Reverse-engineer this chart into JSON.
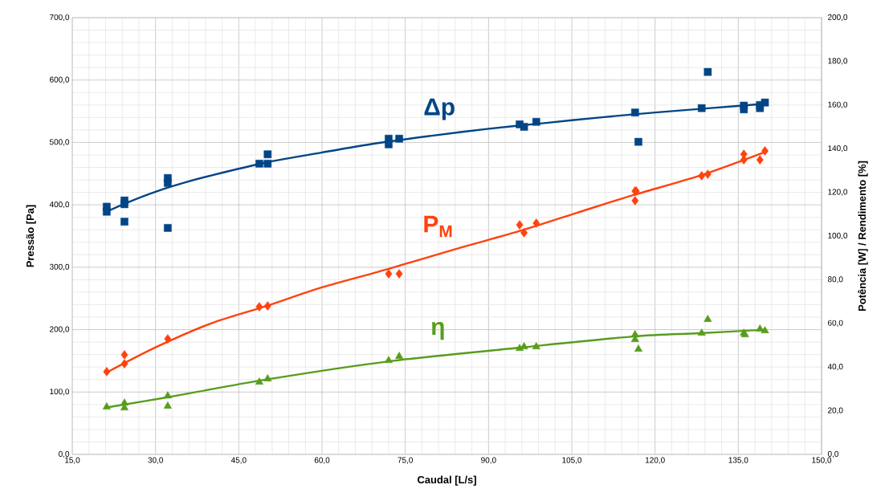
{
  "chart_data": {
    "type": "scatter",
    "xlabel": "Caudal [L/s]",
    "ylabel": "Pressão [Pa]",
    "y2label": "Potência [W] / Rendimento [%]",
    "xlim": [
      15,
      150
    ],
    "xticks": [
      {
        "value": 15,
        "label": "15,0"
      },
      {
        "value": 30,
        "label": "30,0"
      },
      {
        "value": 45,
        "label": "45,0"
      },
      {
        "value": 60,
        "label": "60,0"
      },
      {
        "value": 75,
        "label": "75,0"
      },
      {
        "value": 90,
        "label": "90,0"
      },
      {
        "value": 105,
        "label": "105,0"
      },
      {
        "value": 120,
        "label": "120,0"
      },
      {
        "value": 135,
        "label": "135,0"
      },
      {
        "value": 150,
        "label": "150,0"
      }
    ],
    "ylim": [
      0,
      700
    ],
    "yticks": [
      {
        "value": 0,
        "label": "0,0"
      },
      {
        "value": 100,
        "label": "100,0"
      },
      {
        "value": 200,
        "label": "200,0"
      },
      {
        "value": 300,
        "label": "300,0"
      },
      {
        "value": 400,
        "label": "400,0"
      },
      {
        "value": 500,
        "label": "500,0"
      },
      {
        "value": 600,
        "label": "600,0"
      },
      {
        "value": 700,
        "label": "700,0"
      }
    ],
    "y2lim": [
      0,
      200
    ],
    "y2ticks": [
      {
        "value": 0,
        "label": "0,0"
      },
      {
        "value": 20,
        "label": "20,0"
      },
      {
        "value": 40,
        "label": "40,0"
      },
      {
        "value": 60,
        "label": "60,0"
      },
      {
        "value": 80,
        "label": "80,0"
      },
      {
        "value": 100,
        "label": "100,0"
      },
      {
        "value": 120,
        "label": "120,0"
      },
      {
        "value": 140,
        "label": "140,0"
      },
      {
        "value": 160,
        "label": "160,0"
      },
      {
        "value": 180,
        "label": "180,0"
      },
      {
        "value": 200,
        "label": "200,0"
      }
    ],
    "grid": true,
    "series": [
      {
        "name": "Δp",
        "marker": "square",
        "color": "#004586",
        "x": [
          21.2,
          21.2,
          24.4,
          24.4,
          24.4,
          32.2,
          32.2,
          32.2,
          48.7,
          50.2,
          50.2,
          72.0,
          72.0,
          73.9,
          95.6,
          96.4,
          98.6,
          116.4,
          117.0,
          128.4,
          129.5,
          136.0,
          136.0,
          138.9,
          138.9,
          139.8
        ],
        "values": [
          397,
          389,
          407,
          401,
          373,
          443,
          435,
          363,
          466,
          481,
          466,
          506,
          497,
          506,
          529,
          525,
          533,
          548,
          501,
          555,
          613,
          559,
          553,
          555,
          560,
          564
        ]
      },
      {
        "type": "line",
        "marker": "none",
        "color": "#004586",
        "x": [
          21.2,
          25,
          30,
          35,
          40,
          50,
          60,
          70,
          80,
          90,
          100,
          110,
          120,
          130,
          139.8
        ],
        "values": [
          389,
          404,
          421,
          435,
          447,
          468,
          484,
          499,
          511,
          522,
          531,
          540,
          548,
          555,
          562
        ]
      },
      {
        "name": "P$_{M}$",
        "marker": "diamond",
        "axis": "y2",
        "color": "#ff420e",
        "x": [
          21.2,
          24.4,
          24.4,
          32.2,
          48.7,
          50.2,
          72.0,
          73.9,
          95.6,
          96.4,
          98.6,
          116.4,
          116.6,
          116.4,
          128.4,
          129.5,
          136.0,
          136.0,
          138.9,
          139.8
        ],
        "values": [
          37.9,
          45.6,
          41.5,
          52.9,
          67.6,
          68.0,
          82.7,
          82.7,
          105.1,
          101.5,
          105.9,
          120.6,
          120.6,
          116.2,
          127.6,
          128.3,
          137.5,
          134.9,
          134.9,
          139.0
        ]
      },
      {
        "type": "line",
        "marker": "none",
        "axis": "y2",
        "color": "#ff420e",
        "x": [
          21.2,
          30,
          40,
          50,
          60,
          72,
          84,
          96,
          106,
          116,
          128,
          139.8
        ],
        "values": [
          37.5,
          49,
          60,
          68,
          76.5,
          85,
          94,
          102.6,
          110.7,
          118.7,
          127.6,
          138.5
        ]
      },
      {
        "name": "η",
        "marker": "triangle",
        "axis": "y2",
        "color": "#579d1c",
        "x": [
          21.2,
          24.4,
          24.4,
          32.2,
          32.2,
          48.7,
          50.2,
          72.0,
          73.9,
          95.6,
          96.4,
          98.6,
          116.4,
          116.4,
          117.0,
          128.4,
          129.5,
          136.0,
          136.2,
          138.9,
          139.8
        ],
        "values": [
          21.7,
          23.5,
          21.3,
          26.8,
          22.1,
          33.1,
          34.6,
          43.0,
          44.9,
          48.5,
          49.3,
          49.3,
          54.8,
          52.6,
          48.2,
          55.5,
          61.8,
          55.5,
          54.8,
          57.4,
          56.6
        ]
      },
      {
        "type": "line",
        "marker": "none",
        "axis": "y2",
        "color": "#579d1c",
        "x": [
          21.2,
          32,
          50,
          72,
          96,
          116,
          128,
          139.8
        ],
        "values": [
          21.5,
          26.1,
          34.3,
          42.6,
          49.0,
          54.0,
          55.5,
          57.1
        ]
      }
    ]
  }
}
